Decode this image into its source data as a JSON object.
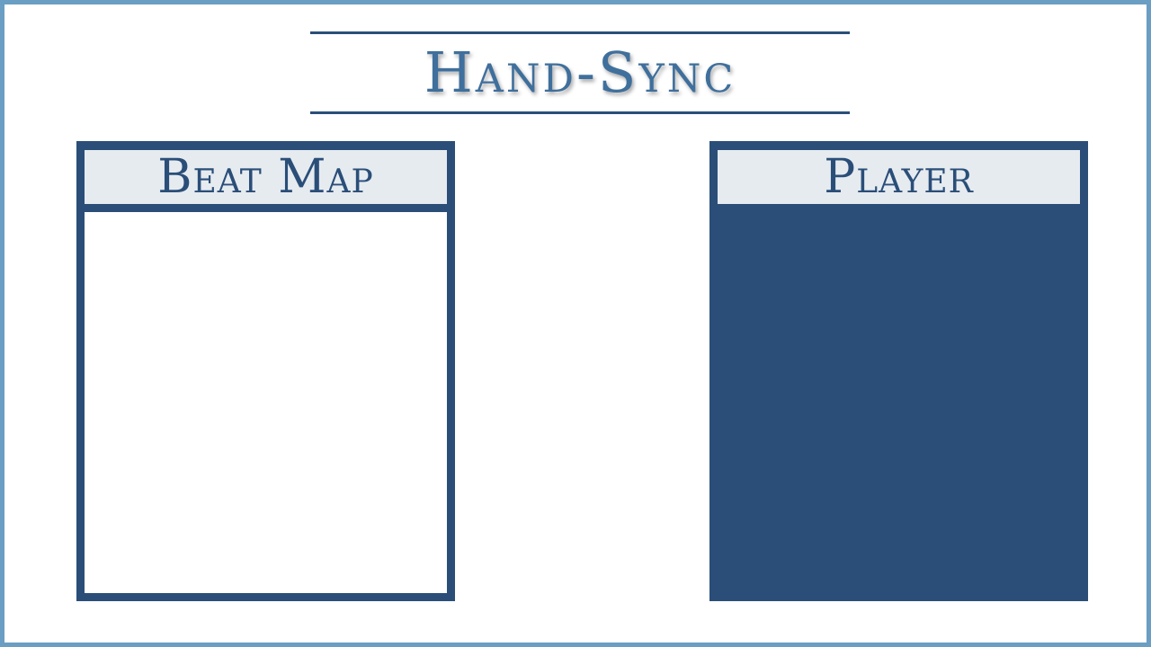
{
  "app": {
    "title": "Hand-Sync"
  },
  "panels": {
    "beat_map": {
      "label": "Beat Map"
    },
    "player": {
      "label": "Player"
    }
  },
  "colors": {
    "border_accent": "#6a9ec2",
    "panel_navy": "#2a4e78",
    "header_bg": "#e6ebf0",
    "title_text": "#3f6f9c"
  }
}
